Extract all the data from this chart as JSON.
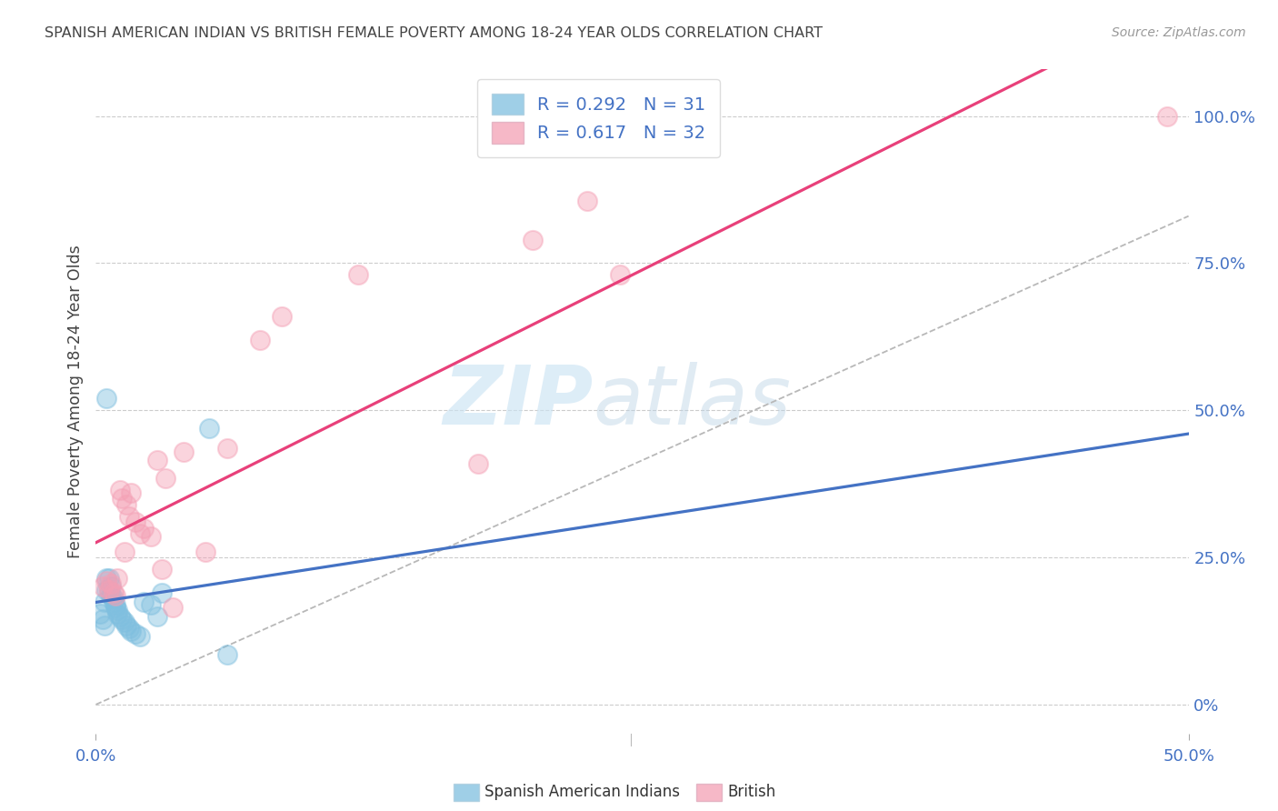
{
  "title": "SPANISH AMERICAN INDIAN VS BRITISH FEMALE POVERTY AMONG 18-24 YEAR OLDS CORRELATION CHART",
  "source": "Source: ZipAtlas.com",
  "ylabel": "Female Poverty Among 18-24 Year Olds",
  "right_ytick_labels": [
    "0%",
    "25.0%",
    "50.0%",
    "75.0%",
    "100.0%"
  ],
  "right_ytick_vals": [
    0.0,
    0.25,
    0.5,
    0.75,
    1.0
  ],
  "xlim": [
    0.0,
    0.5
  ],
  "ylim": [
    -0.05,
    1.08
  ],
  "color_blue": "#7fbfdf",
  "color_pink": "#f4a0b5",
  "color_blue_line": "#4472c4",
  "color_pink_line": "#e8407a",
  "color_grey_dash": "#b8b8b8",
  "color_grid": "#cccccc",
  "color_text_blue": "#4472c4",
  "color_title": "#444444",
  "color_source": "#999999",
  "grid_vals": [
    0.0,
    0.25,
    0.5,
    0.75,
    1.0
  ],
  "blue_x": [
    0.002,
    0.003,
    0.004,
    0.004,
    0.005,
    0.005,
    0.005,
    0.006,
    0.006,
    0.007,
    0.007,
    0.008,
    0.008,
    0.009,
    0.009,
    0.01,
    0.01,
    0.011,
    0.012,
    0.013,
    0.014,
    0.015,
    0.016,
    0.018,
    0.02,
    0.022,
    0.025,
    0.028,
    0.03,
    0.052,
    0.06
  ],
  "blue_y": [
    0.155,
    0.145,
    0.135,
    0.175,
    0.195,
    0.215,
    0.52,
    0.215,
    0.195,
    0.2,
    0.185,
    0.18,
    0.175,
    0.17,
    0.165,
    0.16,
    0.155,
    0.15,
    0.145,
    0.14,
    0.135,
    0.13,
    0.125,
    0.12,
    0.115,
    0.175,
    0.17,
    0.15,
    0.19,
    0.47,
    0.085
  ],
  "pink_x": [
    0.003,
    0.005,
    0.006,
    0.007,
    0.008,
    0.009,
    0.01,
    0.011,
    0.012,
    0.013,
    0.014,
    0.015,
    0.016,
    0.018,
    0.02,
    0.022,
    0.025,
    0.028,
    0.03,
    0.032,
    0.035,
    0.04,
    0.05,
    0.06,
    0.075,
    0.085,
    0.12,
    0.175,
    0.2,
    0.225,
    0.24,
    0.49
  ],
  "pink_y": [
    0.2,
    0.21,
    0.195,
    0.205,
    0.19,
    0.185,
    0.215,
    0.365,
    0.35,
    0.26,
    0.34,
    0.32,
    0.36,
    0.31,
    0.29,
    0.3,
    0.285,
    0.415,
    0.23,
    0.385,
    0.165,
    0.43,
    0.26,
    0.435,
    0.62,
    0.66,
    0.73,
    0.41,
    0.79,
    0.855,
    0.73,
    1.0
  ],
  "legend_blue_label": "R = 0.292   N = 31",
  "legend_pink_label": "R = 0.617   N = 32",
  "bottom_legend_blue": "Spanish American Indians",
  "bottom_legend_pink": "British",
  "bg_color": "#ffffff"
}
